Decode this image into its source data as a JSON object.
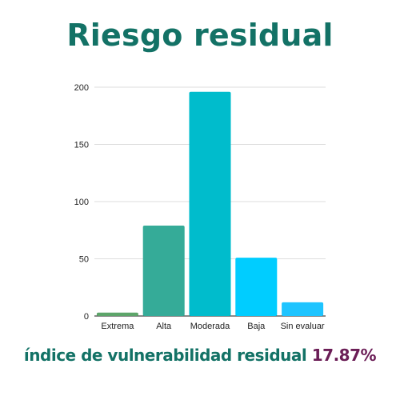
{
  "title": "Riesgo residual",
  "footer": {
    "label": "índice de vulnerabilidad residual",
    "value": "17.87%"
  },
  "chart_data": {
    "type": "bar",
    "title": "Riesgo residual",
    "xlabel": "",
    "ylabel": "",
    "ylim": [
      0,
      200
    ],
    "yticks": [
      0,
      50,
      100,
      150,
      200
    ],
    "grid": true,
    "categories": [
      "Extrema",
      "Alta",
      "Moderada",
      "Baja",
      "Sin evaluar"
    ],
    "values": [
      3,
      79,
      196,
      51,
      12
    ],
    "colors": [
      "#5da56a",
      "#35ab98",
      "#00bccc",
      "#00cdff",
      "#1ec4ff"
    ]
  }
}
